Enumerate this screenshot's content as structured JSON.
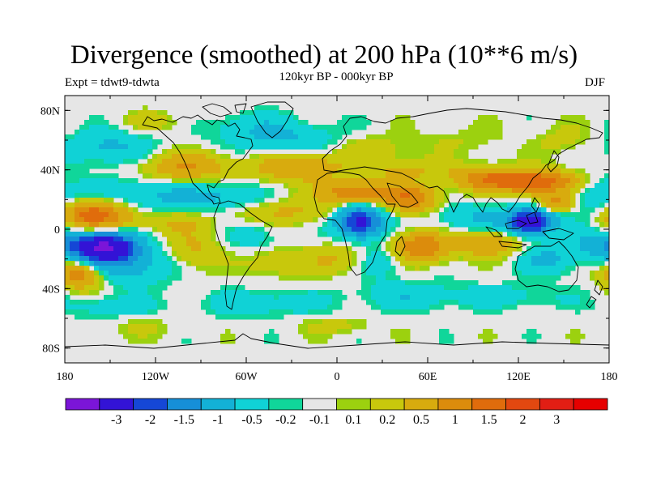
{
  "title": "Divergence (smoothed) at 200 hPa (10**6 m/s)",
  "subtitle": "120kyr BP - 000kyr BP",
  "experiment": "Expt = tdwt9-tdwta",
  "season": "DJF",
  "map": {
    "projection": "cylindrical-equidistant",
    "lon_range": [
      -180,
      180
    ],
    "lat_range": [
      -90,
      90
    ],
    "lat_ticks": [
      {
        "lat": 80,
        "label": "80N"
      },
      {
        "lat": 40,
        "label": "40N"
      },
      {
        "lat": 0,
        "label": "0"
      },
      {
        "lat": -40,
        "label": "40S"
      },
      {
        "lat": -80,
        "label": "80S"
      }
    ],
    "lon_ticks": [
      {
        "lon": -180,
        "label": "180"
      },
      {
        "lon": -120,
        "label": "120W"
      },
      {
        "lon": -60,
        "label": "60W"
      },
      {
        "lon": 0,
        "label": "0"
      },
      {
        "lon": 60,
        "label": "60E"
      },
      {
        "lon": 120,
        "label": "120E"
      },
      {
        "lon": 180,
        "label": "180"
      }
    ],
    "background_color": "#e6e6e6",
    "features": [
      {
        "lon": -155,
        "lat": -12,
        "v": -3.2,
        "rx": 22,
        "ry": 10
      },
      {
        "lon": -125,
        "lat": 22,
        "v": -0.6,
        "rx": 50,
        "ry": 12
      },
      {
        "lon": -140,
        "lat": -25,
        "v": -0.7,
        "rx": 35,
        "ry": 12
      },
      {
        "lon": -160,
        "lat": 10,
        "v": 2.0,
        "rx": 22,
        "ry": 10
      },
      {
        "lon": -110,
        "lat": 5,
        "v": 0.5,
        "rx": 25,
        "ry": 8
      },
      {
        "lon": -95,
        "lat": -15,
        "v": 0.6,
        "rx": 18,
        "ry": 14
      },
      {
        "lon": -170,
        "lat": -30,
        "v": 1.5,
        "rx": 15,
        "ry": 10
      },
      {
        "lon": -100,
        "lat": 42,
        "v": 1.0,
        "rx": 30,
        "ry": 10
      },
      {
        "lon": -70,
        "lat": 20,
        "v": -0.5,
        "rx": 25,
        "ry": 10
      },
      {
        "lon": -40,
        "lat": 12,
        "v": 0.6,
        "rx": 40,
        "ry": 9
      },
      {
        "lon": -55,
        "lat": -5,
        "v": -0.4,
        "rx": 18,
        "ry": 10
      },
      {
        "lon": -40,
        "lat": -22,
        "v": 0.5,
        "rx": 20,
        "ry": 10
      },
      {
        "lon": -25,
        "lat": 42,
        "v": 1.0,
        "rx": 30,
        "ry": 10
      },
      {
        "lon": -30,
        "lat": 60,
        "v": -0.5,
        "rx": 40,
        "ry": 12
      },
      {
        "lon": -150,
        "lat": 55,
        "v": -0.6,
        "rx": 30,
        "ry": 12
      },
      {
        "lon": -120,
        "lat": 72,
        "v": 0.3,
        "rx": 25,
        "ry": 8
      },
      {
        "lon": -60,
        "lat": 70,
        "v": -0.3,
        "rx": 30,
        "ry": 10
      },
      {
        "lon": 15,
        "lat": 5,
        "v": -2.3,
        "rx": 15,
        "ry": 10
      },
      {
        "lon": 15,
        "lat": 25,
        "v": 1.5,
        "rx": 25,
        "ry": 7
      },
      {
        "lon": 50,
        "lat": 20,
        "v": 1.3,
        "rx": 18,
        "ry": 9
      },
      {
        "lon": 55,
        "lat": -12,
        "v": 1.5,
        "rx": 20,
        "ry": 10
      },
      {
        "lon": 30,
        "lat": -20,
        "v": -0.5,
        "rx": 15,
        "ry": 12
      },
      {
        "lon": 0,
        "lat": -20,
        "v": 0.5,
        "rx": 20,
        "ry": 10
      },
      {
        "lon": 20,
        "lat": 55,
        "v": 0.4,
        "rx": 25,
        "ry": 10
      },
      {
        "lon": 45,
        "lat": 40,
        "v": 0.6,
        "rx": 25,
        "ry": 8
      },
      {
        "lon": 90,
        "lat": 8,
        "v": -0.5,
        "rx": 30,
        "ry": 10
      },
      {
        "lon": 128,
        "lat": 5,
        "v": -2.8,
        "rx": 14,
        "ry": 8
      },
      {
        "lon": 130,
        "lat": 32,
        "v": 2.0,
        "rx": 30,
        "ry": 8
      },
      {
        "lon": 95,
        "lat": 35,
        "v": 1.0,
        "rx": 20,
        "ry": 8
      },
      {
        "lon": 145,
        "lat": 18,
        "v": 1.2,
        "rx": 12,
        "ry": 6
      },
      {
        "lon": 170,
        "lat": 22,
        "v": -0.5,
        "rx": 20,
        "ry": 15
      },
      {
        "lon": 100,
        "lat": -10,
        "v": 1.0,
        "rx": 20,
        "ry": 8
      },
      {
        "lon": 140,
        "lat": -20,
        "v": -0.6,
        "rx": 20,
        "ry": 10
      },
      {
        "lon": 170,
        "lat": -10,
        "v": -0.5,
        "rx": 15,
        "ry": 10
      },
      {
        "lon": 120,
        "lat": -45,
        "v": -0.3,
        "rx": 35,
        "ry": 8
      },
      {
        "lon": 50,
        "lat": -45,
        "v": -0.4,
        "rx": 40,
        "ry": 10
      },
      {
        "lon": -50,
        "lat": -50,
        "v": -0.4,
        "rx": 40,
        "ry": 9
      },
      {
        "lon": -150,
        "lat": -52,
        "v": -0.4,
        "rx": 30,
        "ry": 8
      },
      {
        "lon": 80,
        "lat": 60,
        "v": 0.2,
        "rx": 30,
        "ry": 10
      },
      {
        "lon": 150,
        "lat": 60,
        "v": 0.3,
        "rx": 20,
        "ry": 10
      },
      {
        "lon": -130,
        "lat": -65,
        "v": 0.2,
        "rx": 25,
        "ry": 8
      },
      {
        "lon": 0,
        "lat": -65,
        "v": 0.3,
        "rx": 25,
        "ry": 6
      }
    ]
  },
  "colorbar": {
    "colors": [
      "#7b15d8",
      "#3313d6",
      "#1547d6",
      "#168fd8",
      "#13b1d6",
      "#10d2d6",
      "#10d69a",
      "#e6e6e6",
      "#9cd10f",
      "#c8c80c",
      "#d8ab0e",
      "#dc8c0c",
      "#e06c0c",
      "#e24810",
      "#e21e14",
      "#e60000"
    ],
    "labels": [
      "-3",
      "-2",
      "-1.5",
      "-1",
      "-0.5",
      "-0.2",
      "-0.1",
      "0.1",
      "0.2",
      "0.5",
      "1",
      "1.5",
      "2",
      "3"
    ],
    "thresholds": [
      -3.5,
      -3,
      -2,
      -1.5,
      -1,
      -0.5,
      -0.2,
      -0.1,
      0.1,
      0.2,
      0.5,
      1,
      1.5,
      2,
      3,
      3.5
    ]
  }
}
